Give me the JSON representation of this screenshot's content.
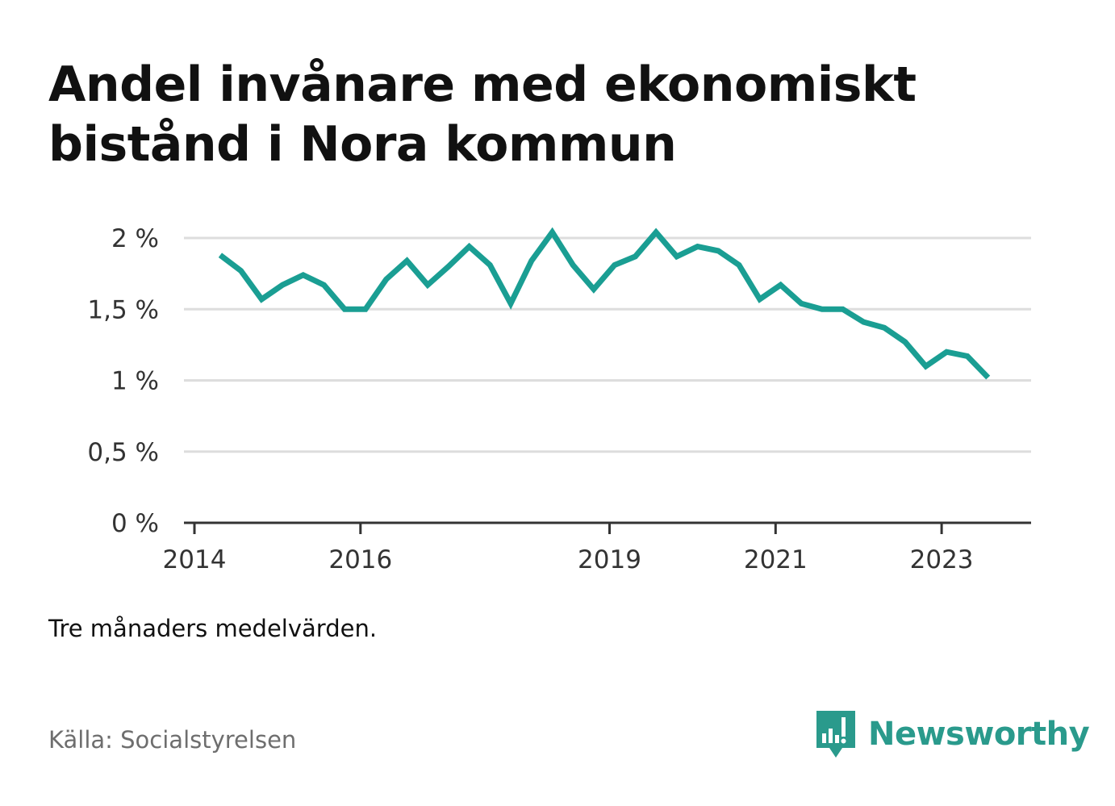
{
  "title": "Andel invånare med ekonomiskt bistånd i Nora kommun",
  "note": "Tre månaders medelvärden.",
  "source": "Källa: Socialstyrelsen",
  "brand": {
    "name": "Newsworthy",
    "icon": "newsworthy-chart-bubble-icon",
    "color": "#2a9a8c"
  },
  "colors": {
    "line": "#1a9e93",
    "grid": "#dddddd",
    "axis": "#333333"
  },
  "chart_data": {
    "type": "line",
    "title": "Andel invånare med ekonomiskt bistånd i Nora kommun",
    "xlabel": "",
    "ylabel": "",
    "xlim": [
      2014,
      2024
    ],
    "ylim": [
      0,
      2
    ],
    "grid": true,
    "legend": "none",
    "y_ticks": [
      0,
      0.5,
      1,
      1.5,
      2
    ],
    "y_tick_labels": [
      "0 %",
      "0,5 %",
      "1 %",
      "1,5 %",
      "2 %"
    ],
    "x_ticks": [
      2014,
      2016,
      2019,
      2021,
      2023
    ],
    "x_tick_labels": [
      "2014",
      "2016",
      "2019",
      "2021",
      "2023"
    ],
    "series": [
      {
        "x": [
          2014.31,
          2014.56,
          2014.81,
          2015.06,
          2015.31,
          2015.56,
          2015.81,
          2016.06,
          2016.31,
          2016.56,
          2016.81,
          2017.06,
          2017.31,
          2017.56,
          2017.81,
          2018.06,
          2018.31,
          2018.56,
          2018.81,
          2019.06,
          2019.31,
          2019.56,
          2019.81,
          2020.06,
          2020.31,
          2020.56,
          2020.81,
          2021.06,
          2021.31,
          2021.56,
          2021.81,
          2022.06,
          2022.31,
          2022.56,
          2022.81,
          2023.06,
          2023.31,
          2023.56
        ],
        "values": [
          1.88,
          1.77,
          1.57,
          1.67,
          1.74,
          1.67,
          1.5,
          1.5,
          1.71,
          1.84,
          1.67,
          1.8,
          1.94,
          1.81,
          1.54,
          1.84,
          2.04,
          1.81,
          1.64,
          1.81,
          1.87,
          2.04,
          1.87,
          1.94,
          1.91,
          1.81,
          1.57,
          1.67,
          1.54,
          1.5,
          1.5,
          1.41,
          1.37,
          1.27,
          1.1,
          1.2,
          1.17,
          1.02
        ]
      }
    ]
  }
}
